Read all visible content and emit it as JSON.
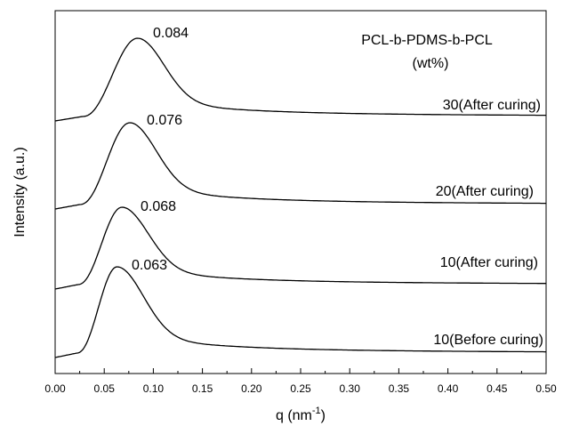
{
  "chart_data": {
    "type": "line",
    "title": "",
    "xlabel": "q (nm",
    "xlabel_sup": "-1",
    "xlabel_close": ")",
    "ylabel": "Intensity (a.u.)",
    "xlim": [
      0.0,
      0.5
    ],
    "x_ticks": [
      0.0,
      0.05,
      0.1,
      0.15,
      0.2,
      0.25,
      0.3,
      0.35,
      0.4,
      0.45,
      0.5
    ],
    "x_tick_labels": [
      "0.00",
      "0.05",
      "0.10",
      "0.15",
      "0.20",
      "0.25",
      "0.30",
      "0.35",
      "0.40",
      "0.45",
      "0.50"
    ],
    "y_ticks_labeled": false,
    "grid": false,
    "legend_title_lines": [
      "PCL-b-PDMS-b-PCL",
      "(wt%)"
    ],
    "series": [
      {
        "name": "30(After curing)",
        "peak_q": 0.084,
        "peak_label": "0.084"
      },
      {
        "name": "20(After curing)",
        "peak_q": 0.076,
        "peak_label": "0.076"
      },
      {
        "name": "10(After curing)",
        "peak_q": 0.068,
        "peak_label": "0.068"
      },
      {
        "name": "10(Before curing)",
        "peak_q": 0.063,
        "peak_label": "0.063"
      }
    ]
  }
}
